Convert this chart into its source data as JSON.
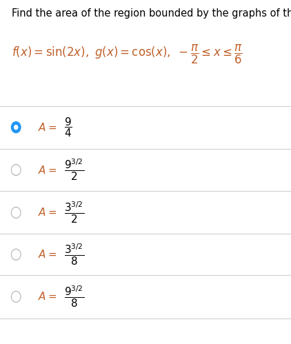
{
  "title": "Find the area of the region bounded by the graphs of the equations.",
  "options": [
    {
      "selected": true,
      "exp": null,
      "base": "9",
      "denominator": "4"
    },
    {
      "selected": false,
      "exp": "3/2",
      "base": "9",
      "denominator": "2"
    },
    {
      "selected": false,
      "exp": "3/2",
      "base": "3",
      "denominator": "2"
    },
    {
      "selected": false,
      "exp": "3/2",
      "base": "3",
      "denominator": "8"
    },
    {
      "selected": false,
      "exp": "3/2",
      "base": "9",
      "denominator": "8"
    }
  ],
  "selected_color": "#2196f3",
  "circle_border": "#bbbbbb",
  "line_color": "#d0d0d0",
  "text_color": "#000000",
  "italic_color": "#c0602a",
  "background_color": "#ffffff",
  "title_fontsize": 10.5,
  "math_fontsize": 12,
  "option_math_fontsize": 11
}
